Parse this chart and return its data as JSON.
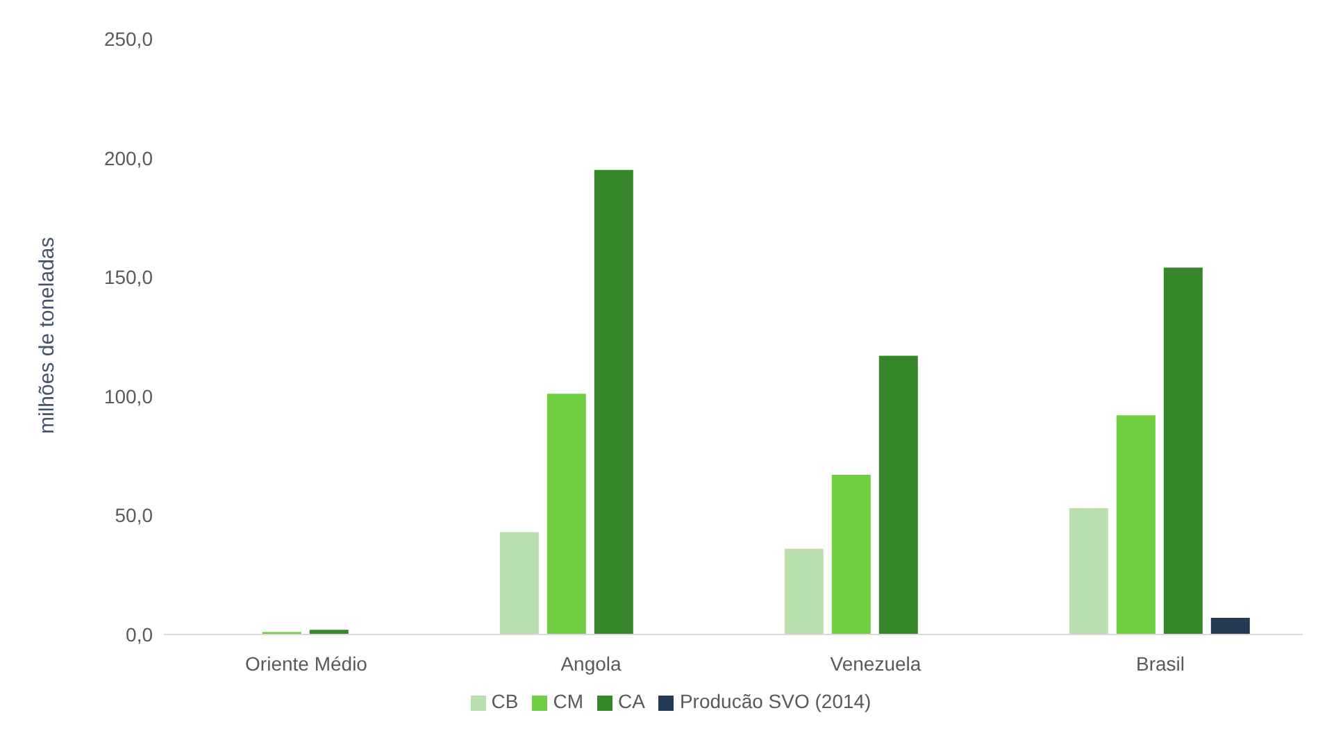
{
  "chart_data": {
    "type": "bar",
    "ylabel": "milhões de toneladas",
    "categories": [
      "Oriente Médio",
      "Angola",
      "Venezuela",
      "Brasil"
    ],
    "series": [
      {
        "name": "CB",
        "color": "#b9dfae",
        "values": [
          null,
          43,
          36,
          53
        ]
      },
      {
        "name": "CM",
        "color": "#70cf40",
        "values": [
          1,
          101,
          67,
          92
        ]
      },
      {
        "name": "CA",
        "color": "#36862a",
        "values": [
          2,
          195,
          117,
          154
        ]
      },
      {
        "name": "Producão SVO (2014)",
        "color": "#243a52",
        "values": [
          null,
          null,
          null,
          7
        ]
      }
    ],
    "ylim": [
      0,
      250
    ],
    "yticks": [
      {
        "value": 0,
        "label": "0,0"
      },
      {
        "value": 50,
        "label": "50,0"
      },
      {
        "value": 100,
        "label": "100,0"
      },
      {
        "value": 150,
        "label": "150,0"
      },
      {
        "value": 200,
        "label": "200,0"
      },
      {
        "value": 250,
        "label": "250,0"
      }
    ],
    "grid": false,
    "legend": "bottom"
  }
}
